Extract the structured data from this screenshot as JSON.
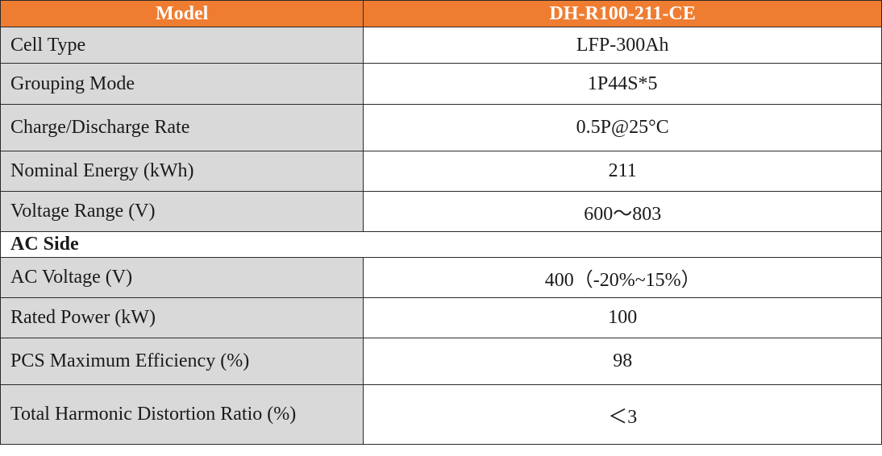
{
  "header": {
    "label": "Model",
    "value": "DH-R100-211-CE"
  },
  "battery_rows": [
    {
      "label": "Cell Type",
      "value": "LFP-300Ah"
    },
    {
      "label": "Grouping Mode",
      "value": "1P44S*5"
    },
    {
      "label": "Charge/Discharge Rate",
      "value": "0.5P@25°C"
    },
    {
      "label": "Nominal Energy (kWh)",
      "value": "211"
    },
    {
      "label": "Voltage Range (V)",
      "value": "600～803"
    }
  ],
  "section": {
    "title": "AC Side"
  },
  "ac_rows": [
    {
      "label": "AC Voltage (V)",
      "value": "400（-20%~15%）"
    },
    {
      "label": "Rated Power (kW)",
      "value": "100"
    },
    {
      "label": "PCS Maximum Efficiency (%)",
      "value": "98"
    },
    {
      "label": "Total Harmonic Distortion Ratio (%)",
      "value": "＜3"
    }
  ],
  "colors": {
    "header_bg": "#ef7d31",
    "label_bg": "#d9d9d9",
    "border": "#2a2a2a"
  }
}
